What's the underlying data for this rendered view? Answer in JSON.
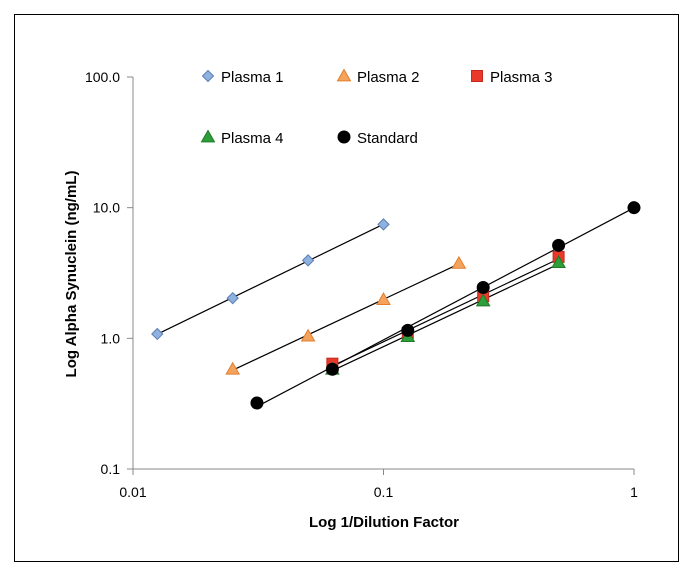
{
  "chart_data": {
    "type": "scatter",
    "title": "",
    "xlabel": "Log 1/Dilution Factor",
    "ylabel": "Log Alpha Synuclein (ng/mL)",
    "xscale": "log",
    "yscale": "log",
    "xlim": [
      0.01,
      1
    ],
    "ylim": [
      0.1,
      100
    ],
    "x_ticks": [
      {
        "value": 0.01,
        "label": "0.01"
      },
      {
        "value": 0.1,
        "label": "0.1"
      },
      {
        "value": 1,
        "label": "1"
      }
    ],
    "y_ticks": [
      {
        "value": 0.1,
        "label": "0.1"
      },
      {
        "value": 1,
        "label": "1.0"
      },
      {
        "value": 10,
        "label": "10.0"
      },
      {
        "value": 100,
        "label": "100.0"
      }
    ],
    "grid": false,
    "legend_position": "top",
    "series": [
      {
        "name": "Plasma 1",
        "marker": "diamond",
        "color": "#8EB1DF",
        "stroke": "#5B7FB4",
        "trendline": true,
        "points": [
          [
            0.0125,
            1.08
          ],
          [
            0.025,
            2.03
          ],
          [
            0.05,
            3.95
          ],
          [
            0.1,
            7.45
          ]
        ]
      },
      {
        "name": "Plasma 2",
        "marker": "triangle",
        "color": "#F5A25D",
        "stroke": "#E07F2E",
        "trendline": true,
        "points": [
          [
            0.025,
            0.58
          ],
          [
            0.05,
            1.04
          ],
          [
            0.1,
            1.98
          ],
          [
            0.2,
            3.75
          ]
        ]
      },
      {
        "name": "Plasma 3",
        "marker": "square",
        "color": "#E8392A",
        "stroke": "#C42A1E",
        "trendline": true,
        "points": [
          [
            0.0625,
            0.64
          ],
          [
            0.125,
            1.1
          ],
          [
            0.25,
            2.1
          ],
          [
            0.5,
            4.2
          ]
        ]
      },
      {
        "name": "Plasma 4",
        "marker": "triangle",
        "color": "#2E9E3A",
        "stroke": "#1E7A28",
        "trendline": true,
        "points": [
          [
            0.0625,
            0.58
          ],
          [
            0.125,
            1.03
          ],
          [
            0.25,
            1.93
          ],
          [
            0.5,
            3.8
          ]
        ]
      },
      {
        "name": "Standard",
        "marker": "circle",
        "color": "#000000",
        "stroke": "#000000",
        "trendline": true,
        "points": [
          [
            0.03125,
            0.32
          ],
          [
            0.0625,
            0.58
          ],
          [
            0.125,
            1.15
          ],
          [
            0.25,
            2.45
          ],
          [
            0.5,
            5.15
          ],
          [
            1,
            10.0
          ]
        ]
      }
    ]
  }
}
